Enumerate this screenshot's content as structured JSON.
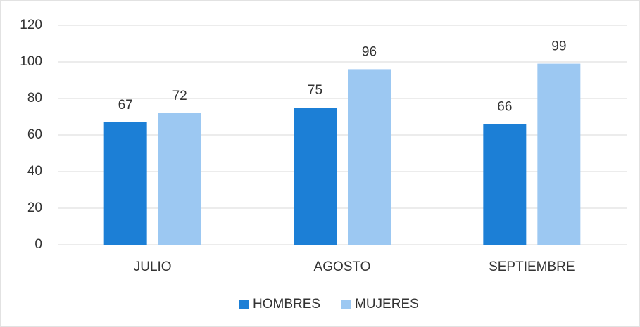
{
  "chart_data": {
    "type": "bar",
    "categories": [
      "JULIO",
      "AGOSTO",
      "SEPTIEMBRE"
    ],
    "series": [
      {
        "name": "HOMBRES",
        "color": "#1c7fd6",
        "values": [
          67,
          75,
          66
        ]
      },
      {
        "name": "MUJERES",
        "color": "#9cc8f2",
        "values": [
          72,
          96,
          99
        ]
      }
    ],
    "ylim": [
      0,
      120
    ],
    "yticks": [
      0,
      20,
      40,
      60,
      80,
      100,
      120
    ],
    "grid": true,
    "legend": "bottom"
  }
}
